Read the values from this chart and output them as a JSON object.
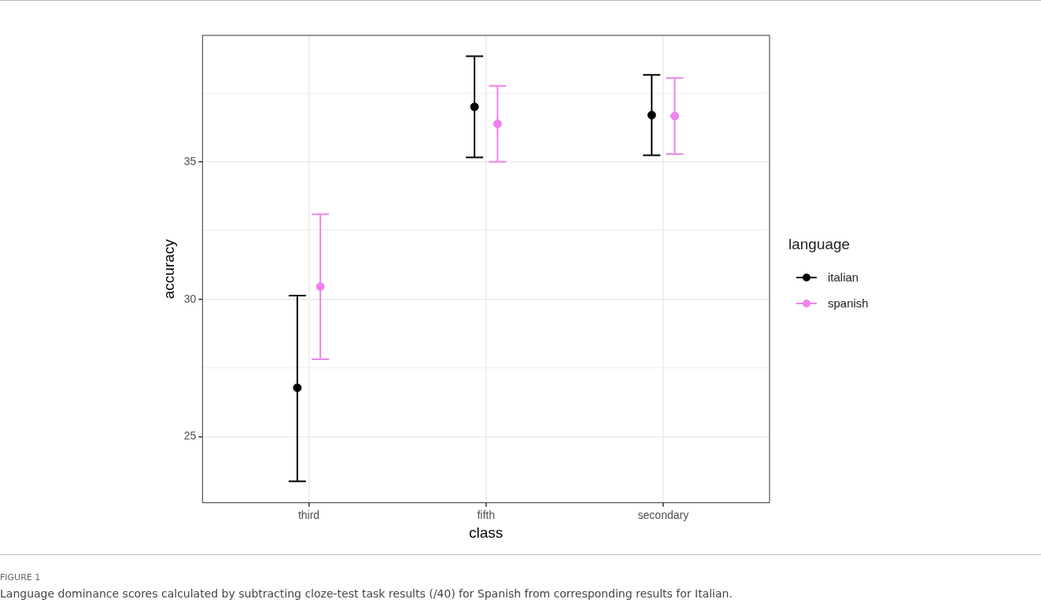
{
  "chart_data": {
    "type": "scatter",
    "xlabel": "class",
    "ylabel": "accuracy",
    "legend_title": "language",
    "categories": [
      "third",
      "fifth",
      "secondary"
    ],
    "series": [
      {
        "name": "italian",
        "color": "#000000",
        "values": [
          26.78,
          37.0,
          36.7
        ],
        "errors": [
          [
            23.38,
            30.13
          ],
          [
            35.16,
            38.84
          ],
          [
            35.24,
            38.16
          ]
        ]
      },
      {
        "name": "spanish",
        "color": "#ee82ee",
        "values": [
          30.46,
          36.38,
          36.66
        ],
        "errors": [
          [
            27.82,
            33.09
          ],
          [
            35.0,
            37.76
          ],
          [
            35.28,
            38.05
          ]
        ]
      }
    ],
    "ylim": [
      22.6,
      39.6
    ],
    "yticks": [
      {
        "value": 25,
        "label": "25"
      },
      {
        "value": 27.5,
        "label": null
      },
      {
        "value": 30,
        "label": "30"
      },
      {
        "value": 32.5,
        "label": null
      },
      {
        "value": 35,
        "label": "35"
      },
      {
        "value": 37.5,
        "label": null
      }
    ],
    "grid": true,
    "legend": "right",
    "marker": "circle",
    "annotations": [
      "FIGURE 1",
      "Language dominance scores calculated by subtracting cloze-test task results (/40) for Spanish from corresponding results for Italian."
    ]
  }
}
